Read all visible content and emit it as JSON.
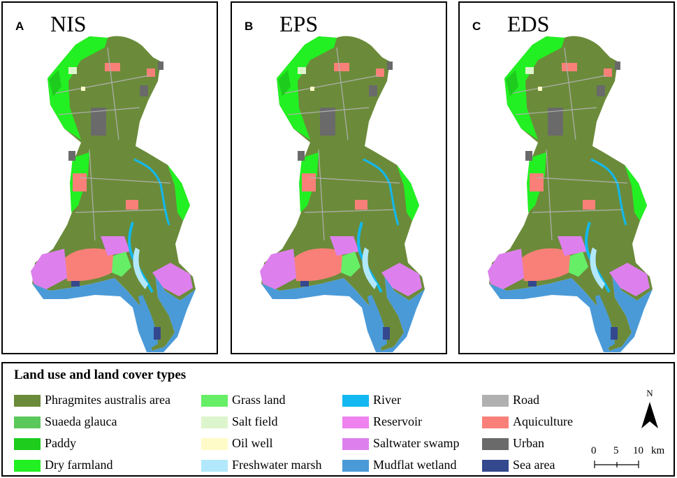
{
  "panels": [
    {
      "letter": "A",
      "title": "NIS"
    },
    {
      "letter": "B",
      "title": "EPS"
    },
    {
      "letter": "C",
      "title": "EDS"
    }
  ],
  "legend": {
    "title": "Land use and land cover types",
    "items": [
      {
        "label": "Phragmites australis area",
        "color": "#6b8b3a"
      },
      {
        "label": "Suaeda glauca",
        "color": "#5ac85a"
      },
      {
        "label": "Paddy",
        "color": "#1ecc1e"
      },
      {
        "label": "Dry farmland",
        "color": "#22f022"
      },
      {
        "label": "Grass land",
        "color": "#66ee66"
      },
      {
        "label": "Salt field",
        "color": "#ddf5cc"
      },
      {
        "label": "Oil well",
        "color": "#fffbc8"
      },
      {
        "label": "Freshwater marsh",
        "color": "#b2e8fb"
      },
      {
        "label": "River",
        "color": "#12b8ef"
      },
      {
        "label": "Reservoir",
        "color": "#ee82ee"
      },
      {
        "label": "Saltwater swamp",
        "color": "#dd80ee"
      },
      {
        "label": "Mudflat wetland",
        "color": "#4a9ad8"
      },
      {
        "label": "Road",
        "color": "#b0b0b0"
      },
      {
        "label": "Aquiculture",
        "color": "#f88078"
      },
      {
        "label": "Urban",
        "color": "#6a6a6a"
      },
      {
        "label": "Sea area",
        "color": "#34488e"
      }
    ]
  },
  "north_arrow": {
    "label": "N"
  },
  "scale_bar": {
    "ticks": [
      "0",
      "5",
      "10"
    ],
    "unit": "km"
  }
}
